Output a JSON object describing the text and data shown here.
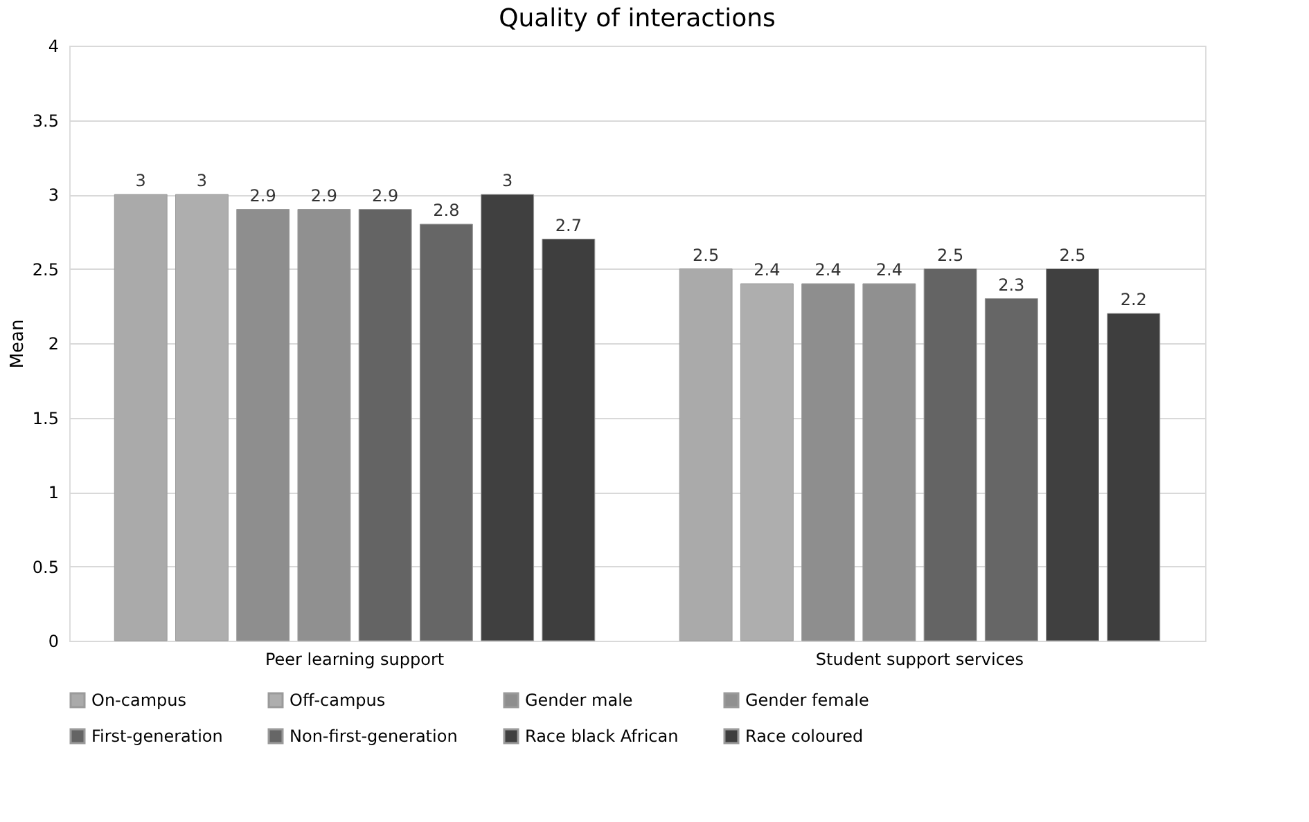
{
  "chart_data": {
    "type": "bar",
    "title": "Quality of interactions",
    "ylabel": "Mean",
    "categories": [
      "Peer learning support",
      "Student support services"
    ],
    "series": [
      {
        "name": "On-campus",
        "color": "#aaaaaa",
        "values": [
          3,
          2.5
        ]
      },
      {
        "name": "Off-campus",
        "color": "#aeaeae",
        "values": [
          3,
          2.4
        ]
      },
      {
        "name": "Gender male",
        "color": "#8e8e8e",
        "values": [
          2.9,
          2.4
        ]
      },
      {
        "name": "Gender female",
        "color": "#909090",
        "values": [
          2.9,
          2.4
        ]
      },
      {
        "name": "First-generation",
        "color": "#646464",
        "values": [
          2.9,
          2.5
        ]
      },
      {
        "name": "Non-first-generation",
        "color": "#666666",
        "values": [
          2.8,
          2.3
        ]
      },
      {
        "name": "Race black African",
        "color": "#404040",
        "values": [
          3,
          2.5
        ]
      },
      {
        "name": "Race coloured",
        "color": "#3e3e3e",
        "values": [
          2.7,
          2.2
        ]
      }
    ],
    "ylim": [
      0,
      4
    ],
    "yticks": [
      0,
      0.5,
      1,
      1.5,
      2,
      2.5,
      3,
      3.5,
      4
    ],
    "grid": "y",
    "legend": "bottom",
    "data_labels": true
  }
}
